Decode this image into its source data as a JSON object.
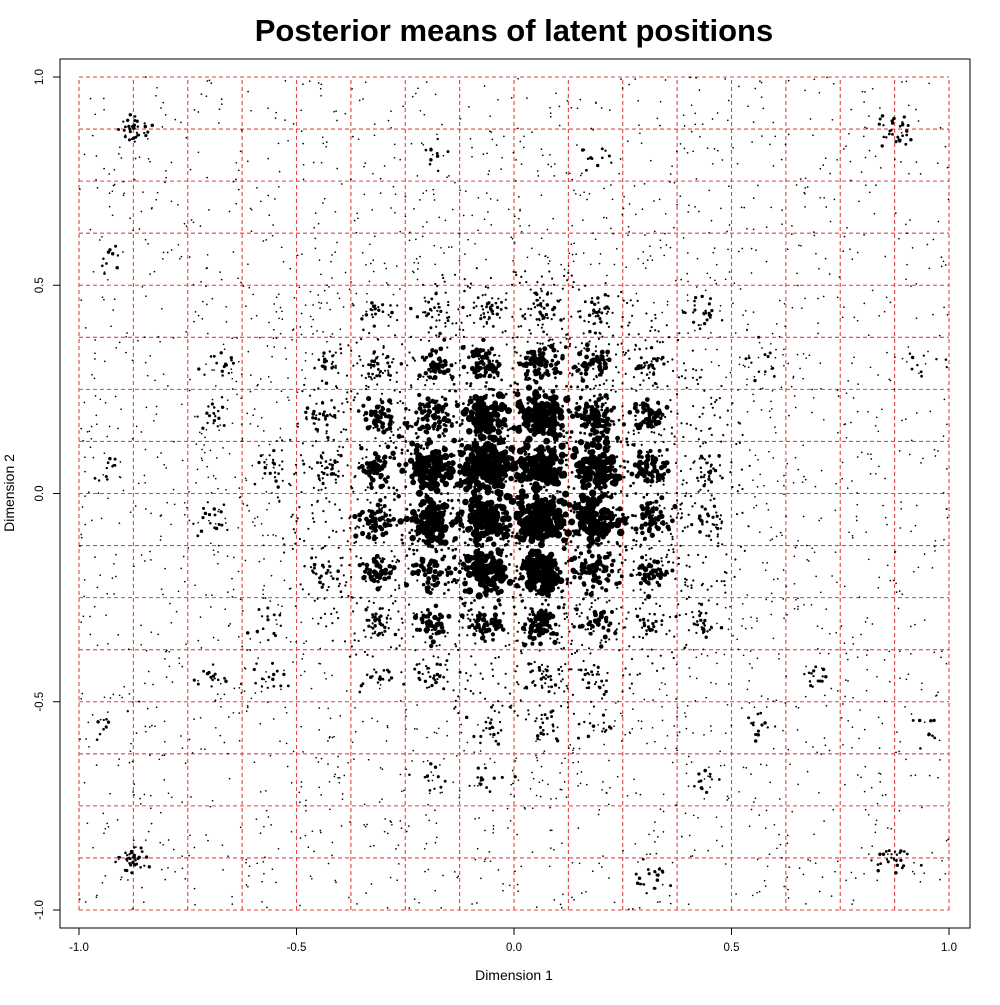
{
  "chart_data": {
    "type": "scatter",
    "title": "Posterior means of latent positions",
    "xlabel": "Dimension 1",
    "ylabel": "Dimension 2",
    "xlim": [
      -1.0,
      1.0
    ],
    "ylim": [
      -1.0,
      1.0
    ],
    "x_ticks": [
      "-1.0",
      "-0.5",
      "0.0",
      "0.5",
      "1.0"
    ],
    "y_ticks": [
      "-1.0",
      "-0.5",
      "0.0",
      "0.5",
      "1.0"
    ],
    "x_tick_values": [
      -1.0,
      -0.5,
      0.0,
      0.5,
      1.0
    ],
    "y_tick_values": [
      -1.0,
      -0.5,
      0.0,
      0.5,
      1.0
    ],
    "grid": true,
    "grid_style": "dashed",
    "grid_color": "#e0443c",
    "grid_step": 0.125,
    "point_color": "#000000",
    "legend": "none",
    "clusters": [
      {
        "x": -0.875,
        "y": 0.875,
        "n": 35,
        "spread": 0.018
      },
      {
        "x": -0.875,
        "y": -0.875,
        "n": 35,
        "spread": 0.018
      },
      {
        "x": 0.875,
        "y": 0.875,
        "n": 30,
        "spread": 0.02
      },
      {
        "x": 0.875,
        "y": -0.875,
        "n": 28,
        "spread": 0.02
      },
      {
        "x": -0.0625,
        "y": 0.0625,
        "n": 220,
        "spread": 0.03
      },
      {
        "x": 0.0625,
        "y": 0.0625,
        "n": 150,
        "spread": 0.025
      },
      {
        "x": 0.0625,
        "y": -0.0625,
        "n": 200,
        "spread": 0.028
      },
      {
        "x": -0.0625,
        "y": -0.0625,
        "n": 140,
        "spread": 0.025
      },
      {
        "x": 0.1875,
        "y": 0.0625,
        "n": 120,
        "spread": 0.025
      },
      {
        "x": 0.1875,
        "y": -0.0625,
        "n": 120,
        "spread": 0.025
      },
      {
        "x": -0.1875,
        "y": 0.0625,
        "n": 110,
        "spread": 0.025
      },
      {
        "x": -0.1875,
        "y": -0.0625,
        "n": 110,
        "spread": 0.025
      },
      {
        "x": 0.0625,
        "y": 0.1875,
        "n": 130,
        "spread": 0.025
      },
      {
        "x": -0.0625,
        "y": 0.1875,
        "n": 110,
        "spread": 0.025
      },
      {
        "x": 0.0625,
        "y": -0.1875,
        "n": 130,
        "spread": 0.025
      },
      {
        "x": -0.0625,
        "y": -0.1875,
        "n": 100,
        "spread": 0.025
      },
      {
        "x": 0.1875,
        "y": 0.1875,
        "n": 110,
        "spread": 0.025
      },
      {
        "x": -0.1875,
        "y": 0.1875,
        "n": 70,
        "spread": 0.025
      },
      {
        "x": 0.1875,
        "y": -0.1875,
        "n": 80,
        "spread": 0.025
      },
      {
        "x": -0.1875,
        "y": -0.1875,
        "n": 70,
        "spread": 0.025
      },
      {
        "x": 0.0625,
        "y": 0.3125,
        "n": 70,
        "spread": 0.02
      },
      {
        "x": 0.0625,
        "y": -0.3125,
        "n": 80,
        "spread": 0.02
      },
      {
        "x": -0.0625,
        "y": 0.3125,
        "n": 55,
        "spread": 0.02
      },
      {
        "x": -0.0625,
        "y": -0.3125,
        "n": 50,
        "spread": 0.02
      },
      {
        "x": 0.3125,
        "y": 0.0625,
        "n": 65,
        "spread": 0.02
      },
      {
        "x": 0.3125,
        "y": -0.0625,
        "n": 55,
        "spread": 0.02
      },
      {
        "x": -0.3125,
        "y": 0.0625,
        "n": 60,
        "spread": 0.02
      },
      {
        "x": -0.3125,
        "y": -0.0625,
        "n": 55,
        "spread": 0.02
      },
      {
        "x": 0.3125,
        "y": 0.1875,
        "n": 55,
        "spread": 0.02
      },
      {
        "x": -0.3125,
        "y": 0.1875,
        "n": 50,
        "spread": 0.02
      },
      {
        "x": 0.3125,
        "y": -0.1875,
        "n": 45,
        "spread": 0.02
      },
      {
        "x": -0.3125,
        "y": -0.1875,
        "n": 45,
        "spread": 0.02
      },
      {
        "x": 0.1875,
        "y": 0.3125,
        "n": 45,
        "spread": 0.02
      },
      {
        "x": -0.1875,
        "y": 0.3125,
        "n": 40,
        "spread": 0.02
      },
      {
        "x": 0.1875,
        "y": -0.3125,
        "n": 35,
        "spread": 0.02
      },
      {
        "x": -0.1875,
        "y": -0.3125,
        "n": 40,
        "spread": 0.02
      },
      {
        "x": -0.3125,
        "y": -0.3125,
        "n": 40,
        "spread": 0.02
      },
      {
        "x": 0.3125,
        "y": 0.3125,
        "n": 35,
        "spread": 0.02
      },
      {
        "x": -0.3125,
        "y": 0.3125,
        "n": 30,
        "spread": 0.02
      },
      {
        "x": 0.3125,
        "y": -0.3125,
        "n": 25,
        "spread": 0.02
      },
      {
        "x": 0.4375,
        "y": 0.0625,
        "n": 25,
        "spread": 0.02
      },
      {
        "x": -0.4375,
        "y": 0.0625,
        "n": 30,
        "spread": 0.02
      },
      {
        "x": 0.4375,
        "y": -0.0625,
        "n": 25,
        "spread": 0.02
      },
      {
        "x": -0.4375,
        "y": -0.1875,
        "n": 30,
        "spread": 0.02
      },
      {
        "x": 0.4375,
        "y": -0.3125,
        "n": 25,
        "spread": 0.02
      },
      {
        "x": -0.4375,
        "y": 0.1875,
        "n": 30,
        "spread": 0.02
      },
      {
        "x": 0.4375,
        "y": 0.4375,
        "n": 25,
        "spread": 0.02
      },
      {
        "x": -0.4375,
        "y": 0.3125,
        "n": 20,
        "spread": 0.02
      },
      {
        "x": 0.1875,
        "y": 0.4375,
        "n": 30,
        "spread": 0.02
      },
      {
        "x": -0.1875,
        "y": 0.4375,
        "n": 25,
        "spread": 0.02
      },
      {
        "x": 0.0625,
        "y": 0.4375,
        "n": 30,
        "spread": 0.02
      },
      {
        "x": -0.0625,
        "y": 0.4375,
        "n": 25,
        "spread": 0.02
      },
      {
        "x": 0.0625,
        "y": -0.4375,
        "n": 25,
        "spread": 0.02
      },
      {
        "x": -0.1875,
        "y": -0.4375,
        "n": 25,
        "spread": 0.02
      },
      {
        "x": 0.1875,
        "y": -0.4375,
        "n": 20,
        "spread": 0.02
      },
      {
        "x": -0.3125,
        "y": -0.4375,
        "n": 20,
        "spread": 0.02
      },
      {
        "x": -0.3125,
        "y": 0.4375,
        "n": 20,
        "spread": 0.02
      },
      {
        "x": -0.0625,
        "y": -0.5625,
        "n": 20,
        "spread": 0.02
      },
      {
        "x": 0.0625,
        "y": -0.5625,
        "n": 20,
        "spread": 0.02
      },
      {
        "x": 0.1875,
        "y": -0.5625,
        "n": 15,
        "spread": 0.02
      },
      {
        "x": -0.5625,
        "y": 0.0625,
        "n": 18,
        "spread": 0.02
      },
      {
        "x": -0.6875,
        "y": -0.0625,
        "n": 18,
        "spread": 0.02
      },
      {
        "x": -0.6875,
        "y": 0.1875,
        "n": 18,
        "spread": 0.02
      },
      {
        "x": -0.5625,
        "y": -0.3125,
        "n": 15,
        "spread": 0.02
      },
      {
        "x": -0.6875,
        "y": -0.4375,
        "n": 15,
        "spread": 0.02
      },
      {
        "x": -0.5625,
        "y": -0.4375,
        "n": 15,
        "spread": 0.02
      },
      {
        "x": -0.6875,
        "y": 0.3125,
        "n": 15,
        "spread": 0.02
      },
      {
        "x": 0.5625,
        "y": -0.5625,
        "n": 15,
        "spread": 0.02
      },
      {
        "x": 0.6875,
        "y": -0.4375,
        "n": 15,
        "spread": 0.02
      },
      {
        "x": 0.5625,
        "y": 0.3125,
        "n": 12,
        "spread": 0.02
      },
      {
        "x": -0.9375,
        "y": 0.0625,
        "n": 12,
        "spread": 0.02
      },
      {
        "x": -0.9375,
        "y": 0.5625,
        "n": 10,
        "spread": 0.02
      },
      {
        "x": 0.9375,
        "y": 0.3125,
        "n": 10,
        "spread": 0.02
      },
      {
        "x": -0.9375,
        "y": -0.5625,
        "n": 10,
        "spread": 0.02
      },
      {
        "x": 0.9375,
        "y": -0.5625,
        "n": 10,
        "spread": 0.02
      },
      {
        "x": 0.3125,
        "y": -0.9375,
        "n": 20,
        "spread": 0.025
      },
      {
        "x": -0.0625,
        "y": -0.6875,
        "n": 15,
        "spread": 0.02
      },
      {
        "x": 0.1875,
        "y": 0.8125,
        "n": 12,
        "spread": 0.02
      },
      {
        "x": -0.1875,
        "y": 0.8125,
        "n": 10,
        "spread": 0.02
      },
      {
        "x": 0.4375,
        "y": -0.6875,
        "n": 12,
        "spread": 0.02
      },
      {
        "x": -0.1875,
        "y": -0.6875,
        "n": 12,
        "spread": 0.02
      }
    ],
    "background_points": 4200
  }
}
